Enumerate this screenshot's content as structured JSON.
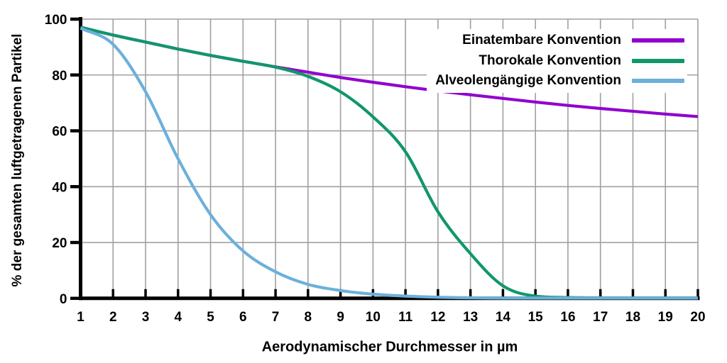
{
  "chart_data": {
    "type": "line",
    "title": "",
    "xlabel": "Aerodynamischer Durchmesser in µm",
    "ylabel": "% der gesamten luftgetragenen Partikel",
    "xlim": [
      1,
      20
    ],
    "ylim": [
      0,
      100
    ],
    "x_ticks": [
      1,
      2,
      3,
      4,
      5,
      6,
      7,
      8,
      9,
      10,
      11,
      12,
      13,
      14,
      15,
      16,
      17,
      18,
      19,
      20
    ],
    "y_ticks": [
      0,
      20,
      40,
      60,
      80,
      100
    ],
    "grid": true,
    "legend_position": "top-right-inside",
    "x": [
      1,
      2,
      3,
      4,
      5,
      6,
      7,
      8,
      9,
      10,
      11,
      12,
      13,
      14,
      15,
      16,
      17,
      18,
      19,
      20
    ],
    "series": [
      {
        "name": "Einatembare Konvention",
        "color": "#9102CE",
        "values": [
          97.1,
          94.3,
          91.8,
          89.3,
          87.0,
          84.9,
          82.9,
          81.0,
          79.1,
          77.4,
          75.8,
          74.3,
          72.9,
          71.6,
          70.3,
          69.1,
          68.0,
          67.0,
          66.0,
          65.1
        ]
      },
      {
        "name": "Thorokale Konvention",
        "color": "#10976B",
        "values": [
          97.1,
          94.3,
          91.8,
          89.3,
          87.0,
          84.9,
          82.8,
          79.5,
          74.0,
          65.0,
          52.5,
          31.0,
          16.0,
          4.5,
          0.8,
          0.3,
          0.2,
          0.1,
          0.1,
          0.1
        ]
      },
      {
        "name": "Alveolengängige Konvention",
        "color": "#6CB0DC",
        "values": [
          96.8,
          91.0,
          74.0,
          50.0,
          30.0,
          17.0,
          9.5,
          5.0,
          2.8,
          1.5,
          0.8,
          0.4,
          0.2,
          0.1,
          0.1,
          0.1,
          0.1,
          0.1,
          0.1,
          0.1
        ]
      }
    ],
    "colors": {
      "grid": "#A0A0A0",
      "axis": "#000000",
      "text": "#000000",
      "background": "#FFFFFF"
    }
  }
}
